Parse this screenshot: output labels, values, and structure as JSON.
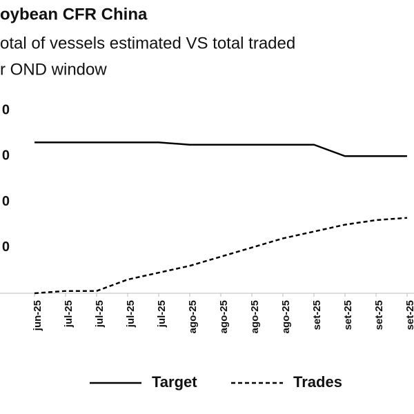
{
  "chart_data": {
    "type": "line",
    "title": "oybean CFR China",
    "subtitle": [
      "otal of vessels estimated VS total traded",
      "r OND window"
    ],
    "categories": [
      "jun-25",
      "jul-25",
      "jul-25",
      "jul-25",
      "jul-25",
      "ago-25",
      "ago-25",
      "ago-25",
      "ago-25",
      "set-25",
      "set-25",
      "set-25",
      "set-25"
    ],
    "series": [
      {
        "name": "Target",
        "color": "#000000",
        "style": "solid",
        "values": [
          66,
          66,
          66,
          66,
          66,
          65,
          65,
          65,
          65,
          65,
          60,
          60,
          60
        ]
      },
      {
        "name": "Trades",
        "color": "#000000",
        "style": "dashed",
        "values": [
          0,
          1,
          1,
          6,
          9,
          12,
          16,
          20,
          24,
          27,
          30,
          32,
          33
        ]
      }
    ],
    "ylim": [
      0,
      80
    ],
    "yticks": [
      {
        "value": 20,
        "label": "0"
      },
      {
        "value": 40,
        "label": "0"
      },
      {
        "value": 60,
        "label": "0"
      },
      {
        "value": 80,
        "label": "0"
      }
    ],
    "grid": false,
    "legend": "bottom"
  }
}
